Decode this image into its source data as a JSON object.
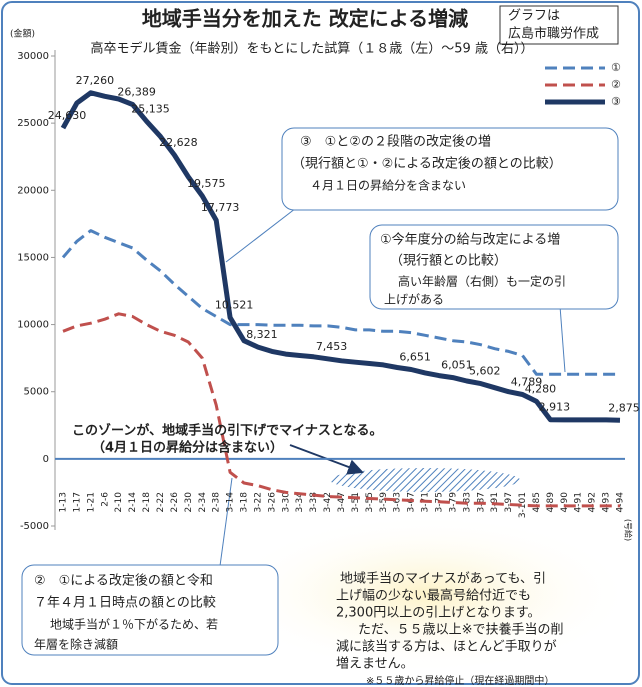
{
  "chart_data": {
    "type": "line",
    "title": "地域手当分を加えた 改定による増減",
    "credit": [
      "グラフは",
      "広島市職労作成"
    ],
    "subtitle": "高卒モデル賃金（年齢別）をもとにした試算（１８歳（左）～59 歳（右））",
    "y_label": "(金額)",
    "x_label": "(号給)",
    "categories": [
      "1-13",
      "1-17",
      "1-21",
      "2-6",
      "2-10",
      "2-14",
      "2-18",
      "2-22",
      "2-26",
      "2-30",
      "2-34",
      "2-38",
      "3-14",
      "3-18",
      "3-22",
      "3-26",
      "3-30",
      "3-34",
      "3-38",
      "3-42",
      "3-47",
      "3-51",
      "3-55",
      "3-59",
      "3-63",
      "3-67",
      "3-71",
      "3-75",
      "3-79",
      "3-83",
      "3-87",
      "3-91",
      "3-97",
      "3-101",
      "4-85",
      "4-89",
      "4-90",
      "4-91",
      "4-92",
      "4-93",
      "4-94"
    ],
    "series": [
      {
        "name": "①",
        "color": "#4f81bd",
        "dash": true,
        "values": [
          15000,
          16200,
          17000,
          16500,
          16100,
          15700,
          14800,
          14000,
          13000,
          12100,
          11200,
          10600,
          10000,
          10000,
          10000,
          9950,
          9950,
          9950,
          9900,
          9900,
          9800,
          9600,
          9600,
          9500,
          9500,
          9400,
          9200,
          9000,
          8800,
          8700,
          8500,
          8200,
          8000,
          7700,
          6300,
          6300,
          6300,
          6300,
          6300,
          6300,
          6300
        ]
      },
      {
        "name": "②",
        "color": "#c0504d",
        "dash": true,
        "values": [
          9500,
          9900,
          10100,
          10400,
          10800,
          10600,
          10000,
          9500,
          9200,
          8700,
          7500,
          4000,
          -1000,
          -1800,
          -2000,
          -2300,
          -2500,
          -2600,
          -2700,
          -2800,
          -2850,
          -2900,
          -2950,
          -3000,
          -3050,
          -3100,
          -3150,
          -3200,
          -3250,
          -3300,
          -3300,
          -3350,
          -3400,
          -3450,
          -3500,
          -3500,
          -3500,
          -3500,
          -3500,
          -3500,
          -3500
        ]
      },
      {
        "name": "③",
        "color": "#1f3864",
        "dash": false,
        "values": [
          24630,
          26500,
          27260,
          27000,
          26800,
          26389,
          25135,
          24000,
          22628,
          21000,
          19575,
          17773,
          10521,
          8800,
          8321,
          8000,
          7800,
          7700,
          7600,
          7453,
          7300,
          7200,
          7100,
          7000,
          6800,
          6651,
          6400,
          6200,
          6051,
          5800,
          5602,
          5300,
          5000,
          4789,
          4280,
          2913,
          2900,
          2900,
          2900,
          2900,
          2875
        ],
        "value_labels": [
          "24,630",
          null,
          "27,260",
          null,
          null,
          "26,389",
          "25,135",
          null,
          "22,628",
          null,
          "19,575",
          "17,773",
          "10,521",
          null,
          "8,321",
          null,
          null,
          null,
          null,
          "7,453",
          null,
          null,
          null,
          null,
          null,
          "6,651",
          null,
          null,
          "6,051",
          null,
          "5,602",
          null,
          null,
          "4,789",
          "4,280",
          "2,913",
          null,
          null,
          null,
          null,
          "2,875"
        ]
      }
    ],
    "ylim": [
      -5000,
      30000
    ],
    "yticks": [
      -5000,
      0,
      5000,
      10000,
      15000,
      20000,
      25000,
      30000
    ],
    "legend": "top-right",
    "annotations": {
      "box3": [
        "③　①と②の２段階の改定後の増",
        "（現行額と①・②による改定後の額との比較）",
        "４月１日の昇給分を含まない"
      ],
      "box1": [
        "①今年度分の給与改定による増",
        "（現行額との比較）",
        "高い年齢層（右側）も一定の引",
        "上げがある"
      ],
      "zone": [
        "このゾーンが、地域手当の引下げでマイナスとなる。",
        "（4月１日の昇給分は含まない）"
      ],
      "box2": [
        "②　①による改定後の額と令和",
        "７年４月１日時点の額との比較",
        "地域手当が１％下がるため、若",
        "年層を除き減額"
      ],
      "note": [
        "地域手当のマイナスがあっても、引",
        "上げ幅の少ない最高号給付近でも",
        "2,300円以上の引上げとなります。",
        "ただ、５５歳以上※で扶養手当の削",
        "減に該当する方は、ほとんど手取りが",
        "増えません。",
        "※５５歳から昇給停止（現在経過期間中）"
      ]
    }
  }
}
